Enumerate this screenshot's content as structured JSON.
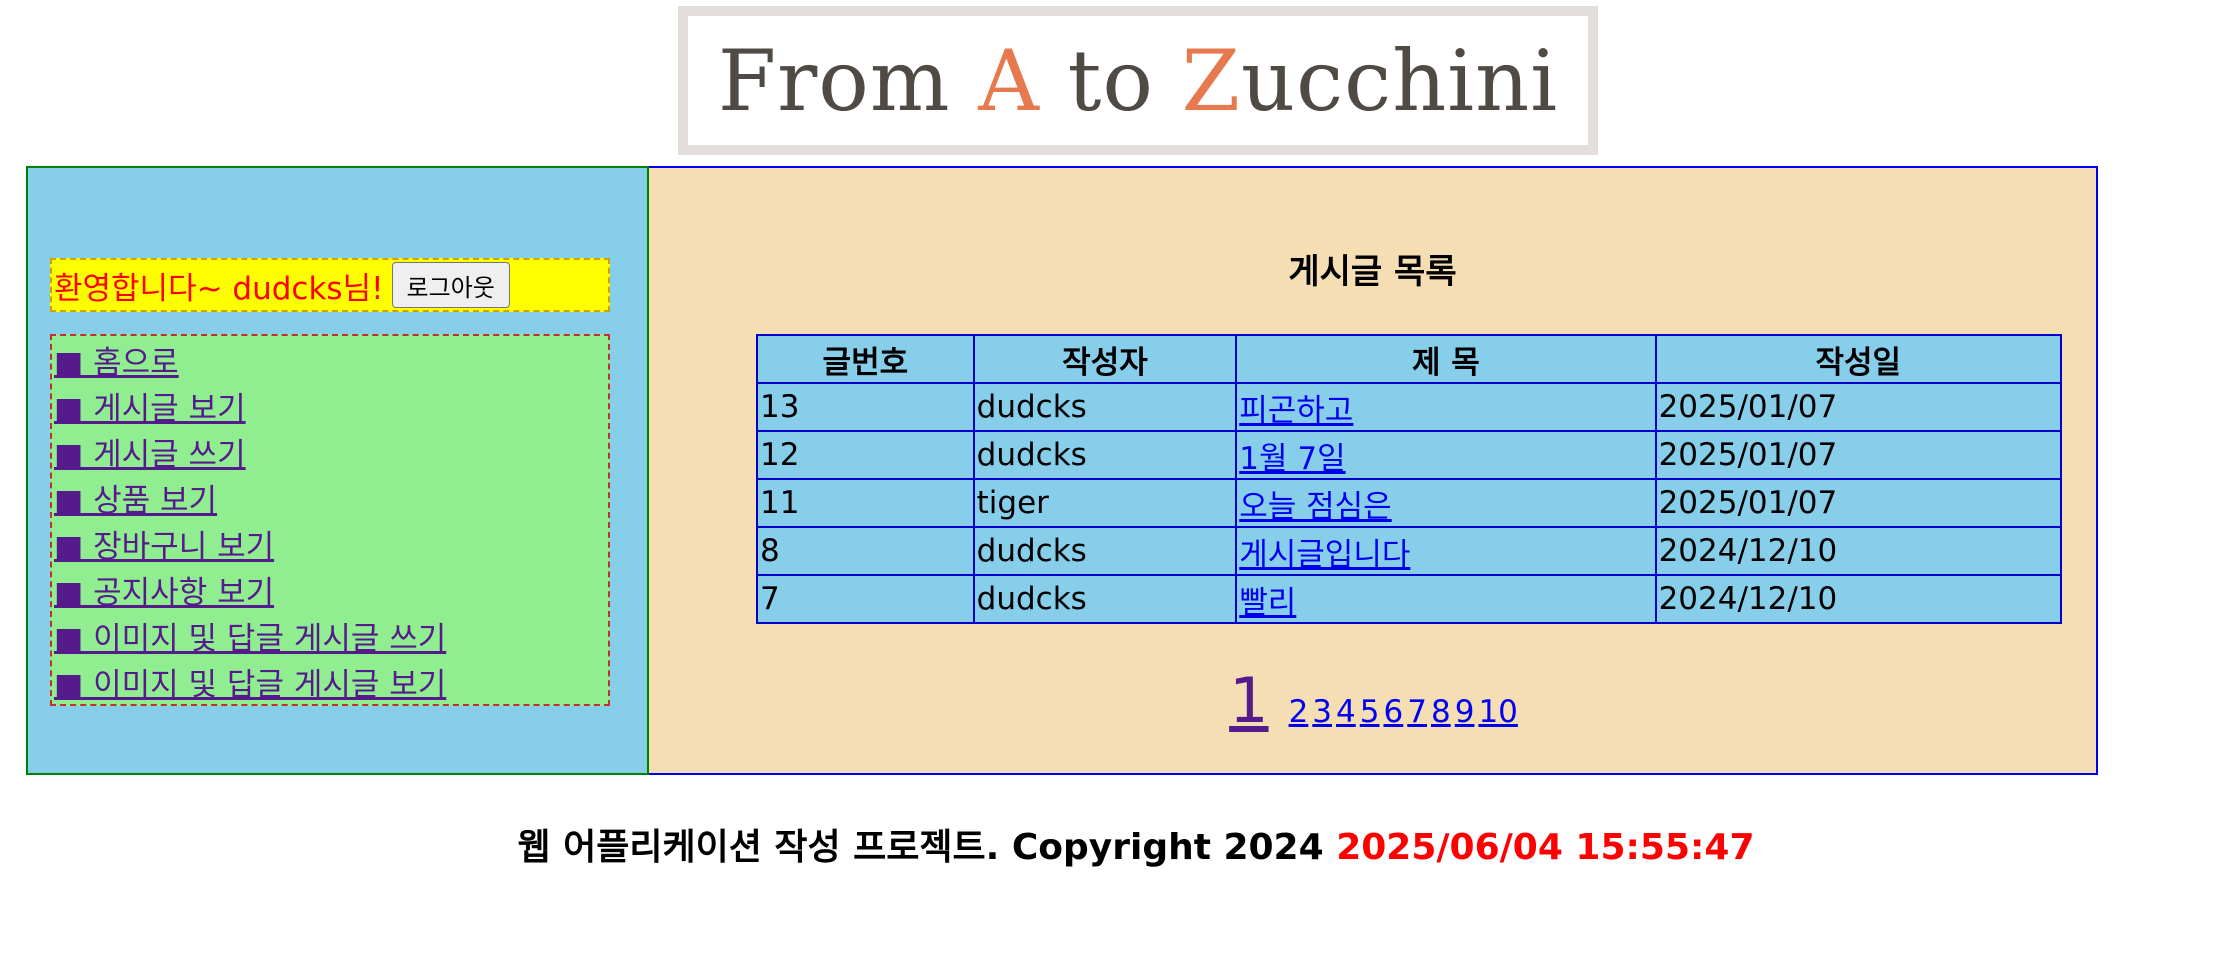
{
  "logo": {
    "part1": "From ",
    "accent1": "A",
    "part2": " to ",
    "accent2": "Z",
    "part3": "ucchini"
  },
  "welcome": {
    "text": "환영합니다~ dudcks님!",
    "logout_label": "로그아웃"
  },
  "menu": {
    "items": [
      {
        "label": "■ 홈으로"
      },
      {
        "label": "■ 게시글 보기"
      },
      {
        "label": "■ 게시글 쓰기"
      },
      {
        "label": "■ 상품 보기"
      },
      {
        "label": "■ 장바구니 보기"
      },
      {
        "label": "■ 공지사항 보기"
      },
      {
        "label": "■ 이미지 및 답글 게시글 쓰기"
      },
      {
        "label": "■ 이미지 및 답글 게시글 보기"
      }
    ]
  },
  "board": {
    "title": "게시글 목록",
    "columns": [
      "글번호",
      "작성자",
      "제 목",
      "작성일"
    ],
    "rows": [
      {
        "no": "13",
        "writer": "dudcks",
        "subject": "피곤하고",
        "date": "2025/01/07"
      },
      {
        "no": "12",
        "writer": "dudcks",
        "subject": "1월 7일",
        "date": "2025/01/07"
      },
      {
        "no": "11",
        "writer": "tiger",
        "subject": "오늘 점심은",
        "date": "2025/01/07"
      },
      {
        "no": "8",
        "writer": "dudcks",
        "subject": "게시글입니다",
        "date": "2024/12/10"
      },
      {
        "no": "7",
        "writer": "dudcks",
        "subject": "빨리",
        "date": "2024/12/10"
      }
    ]
  },
  "pagination": {
    "current": "1",
    "pages": [
      "2",
      "3",
      "4",
      "5",
      "6",
      "7",
      "8",
      "9",
      "10"
    ]
  },
  "footer": {
    "text": "웹 어플리케이션 작성 프로젝트. Copyright 2024",
    "clock": "2025/06/04 15:55:47"
  },
  "colors": {
    "sidebar_bg": "#87ceeb",
    "welcome_bg": "#ffff00",
    "menu_bg": "#90ee90",
    "main_bg": "#f5deb3",
    "table_bg": "#87ceeb",
    "clock_color": "#ff0000"
  }
}
